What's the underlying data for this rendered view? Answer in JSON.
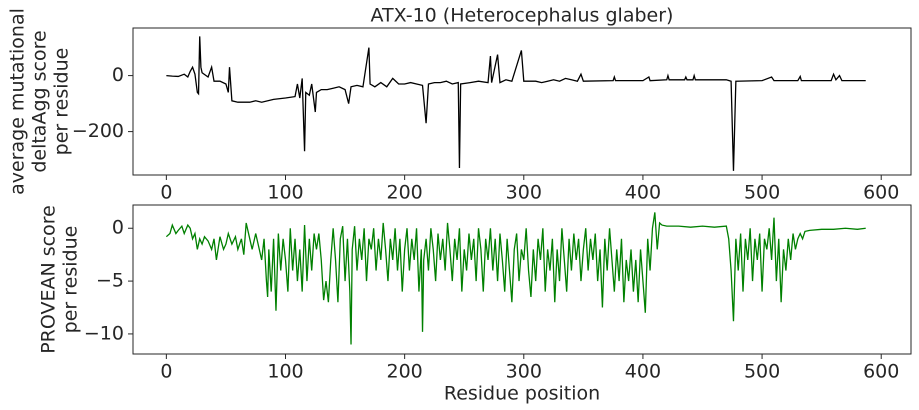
{
  "chart_data": [
    {
      "type": "line",
      "title": "ATX-10 (Heterocephalus glaber)",
      "ylabel": [
        "average mutational",
        "deltaAgg score",
        "per residue"
      ],
      "xlim": [
        -28,
        625
      ],
      "ylim": [
        -355,
        170
      ],
      "xticks": [
        0,
        100,
        200,
        300,
        400,
        500,
        600
      ],
      "yticks": [
        {
          "value": -200,
          "label": "−200"
        },
        0
      ],
      "series": [
        {
          "color": "#000000",
          "x": [
            0,
            5,
            10,
            15,
            18,
            20,
            22,
            24,
            26,
            27,
            28,
            29,
            30,
            35,
            38,
            40,
            45,
            50,
            52,
            53,
            55,
            60,
            70,
            75,
            80,
            90,
            100,
            108,
            110,
            112,
            114,
            116,
            117,
            120,
            122,
            125,
            126,
            130,
            135,
            140,
            145,
            150,
            153,
            155,
            160,
            165,
            170,
            171,
            175,
            180,
            185,
            190,
            195,
            200,
            205,
            210,
            215,
            218,
            220,
            225,
            230,
            235,
            240,
            245,
            246,
            247,
            255,
            262,
            270,
            272,
            273,
            278,
            280,
            285,
            290,
            298,
            300,
            305,
            310,
            315,
            320,
            325,
            330,
            335,
            340,
            345,
            348,
            350,
            375,
            376,
            377,
            400,
            405,
            406,
            420,
            421,
            422,
            435,
            436,
            437,
            442,
            443,
            444,
            470,
            474,
            476,
            478,
            500,
            508,
            510,
            530,
            532,
            533,
            558,
            560,
            562,
            565,
            567,
            587
          ],
          "values": [
            0,
            -2,
            -3,
            5,
            -5,
            15,
            30,
            5,
            -60,
            -65,
            140,
            30,
            10,
            -5,
            30,
            -20,
            -20,
            -30,
            -60,
            30,
            -90,
            -95,
            -95,
            -90,
            -95,
            -85,
            -80,
            -75,
            -30,
            -80,
            -10,
            -270,
            -60,
            -70,
            -30,
            -130,
            -60,
            -50,
            -50,
            -45,
            -40,
            -50,
            -100,
            -40,
            -35,
            -40,
            100,
            -30,
            -40,
            -25,
            -40,
            -10,
            -30,
            -30,
            -25,
            -30,
            -35,
            -170,
            -30,
            -25,
            -25,
            -20,
            -30,
            -25,
            -330,
            -30,
            -25,
            -20,
            -25,
            70,
            -25,
            75,
            -25,
            -15,
            -20,
            90,
            -20,
            -20,
            -20,
            -25,
            -20,
            -15,
            -20,
            -10,
            -15,
            -20,
            5,
            -20,
            -18,
            -5,
            -18,
            -18,
            -5,
            -18,
            -15,
            0,
            -15,
            -15,
            -5,
            -15,
            -15,
            0,
            -15,
            -15,
            -20,
            -340,
            -20,
            -18,
            -5,
            -18,
            -18,
            -3,
            -18,
            -18,
            5,
            -15,
            0,
            -18,
            -18
          ]
        }
      ]
    },
    {
      "type": "line",
      "xlabel": "Residue position",
      "ylabel": [
        "PROVEAN score",
        "per residue"
      ],
      "xlim": [
        -28,
        625
      ],
      "ylim": [
        -11.9,
        2.2
      ],
      "xticks": [
        0,
        100,
        200,
        300,
        400,
        500,
        600
      ],
      "yticks": [
        {
          "value": -10,
          "label": "−10"
        },
        {
          "value": -5,
          "label": "−5"
        },
        0
      ],
      "series": [
        {
          "color": "#008000",
          "x": [
            0,
            3,
            5,
            8,
            10,
            13,
            15,
            18,
            20,
            22,
            24,
            26,
            28,
            30,
            32,
            35,
            38,
            40,
            42,
            45,
            48,
            50,
            52,
            55,
            58,
            60,
            63,
            65,
            67,
            70,
            72,
            75,
            78,
            80,
            82,
            84,
            85,
            86,
            88,
            90,
            92,
            94,
            96,
            98,
            100,
            102,
            104,
            106,
            108,
            110,
            112,
            114,
            116,
            118,
            120,
            122,
            124,
            126,
            128,
            130,
            132,
            134,
            136,
            138,
            140,
            142,
            144,
            146,
            148,
            150,
            152,
            154,
            155,
            156,
            158,
            160,
            162,
            164,
            166,
            168,
            170,
            172,
            174,
            176,
            178,
            180,
            182,
            184,
            186,
            188,
            190,
            192,
            194,
            196,
            198,
            200,
            202,
            204,
            206,
            208,
            210,
            212,
            214,
            215,
            216,
            218,
            220,
            222,
            224,
            226,
            228,
            230,
            232,
            234,
            236,
            238,
            240,
            242,
            244,
            246,
            248,
            250,
            252,
            254,
            256,
            258,
            260,
            262,
            264,
            266,
            268,
            270,
            272,
            274,
            276,
            278,
            280,
            282,
            284,
            286,
            288,
            290,
            292,
            294,
            296,
            298,
            300,
            302,
            304,
            306,
            308,
            310,
            312,
            314,
            316,
            318,
            320,
            322,
            324,
            326,
            328,
            330,
            332,
            334,
            336,
            338,
            340,
            342,
            344,
            346,
            348,
            350,
            352,
            354,
            356,
            358,
            360,
            362,
            364,
            366,
            368,
            370,
            372,
            374,
            376,
            378,
            380,
            382,
            384,
            386,
            388,
            390,
            392,
            394,
            396,
            398,
            400,
            402,
            404,
            406,
            408,
            410,
            412,
            414,
            416,
            420,
            430,
            440,
            450,
            460,
            470,
            472,
            474,
            476,
            478,
            480,
            482,
            484,
            486,
            488,
            490,
            492,
            494,
            496,
            498,
            500,
            502,
            504,
            506,
            508,
            510,
            512,
            514,
            516,
            518,
            520,
            522,
            524,
            526,
            528,
            530,
            532,
            534,
            536,
            540,
            550,
            560,
            570,
            580,
            587
          ],
          "values": [
            -0.8,
            -0.5,
            0.3,
            -0.5,
            -0.2,
            0.2,
            -0.5,
            0.3,
            0,
            -1,
            -0.5,
            -2,
            -1,
            -1.5,
            -0.8,
            -1.2,
            -2,
            -1,
            -3,
            -0.8,
            -2,
            -1.5,
            -0.5,
            -1.5,
            -0.8,
            -2,
            -1,
            -2.5,
            0.5,
            -1,
            -2,
            -0.5,
            -2,
            -3,
            -1,
            -5,
            -6.5,
            -2,
            -6,
            -1,
            -7.8,
            -0.5,
            -4,
            -1,
            -3,
            -6,
            0,
            -4,
            -1,
            -5,
            -2,
            -6,
            0.3,
            -5,
            -1,
            -4,
            -0.5,
            -2,
            -0.5,
            -3,
            -6.8,
            -5,
            -7,
            -3,
            0,
            -3,
            -7,
            -1,
            0.2,
            -5,
            -1,
            -6,
            -11,
            -2,
            0.2,
            -4,
            -1,
            -3,
            0,
            -5,
            -1,
            -2,
            0,
            -4,
            -1,
            -3,
            0.5,
            -2,
            -5,
            -1,
            -3,
            0,
            -4,
            -1,
            -6,
            -2,
            0,
            -4,
            -1,
            -3,
            0,
            -6,
            -2,
            -9.8,
            -3,
            -1,
            -4,
            0,
            -2,
            -5,
            -0.5,
            -3,
            -1,
            -4,
            0.5,
            -2,
            -5,
            -1,
            -3,
            0,
            -6,
            -2,
            -4,
            -0.5,
            -3,
            -1,
            -5,
            0,
            -2,
            -6,
            -1,
            -3,
            0,
            -4,
            -1,
            -5,
            -0.5,
            -3,
            -6,
            -1,
            -4,
            -7,
            -2,
            -0.5,
            -5,
            -2,
            -3,
            0,
            -4,
            -6.5,
            -2,
            -5,
            -1,
            -3,
            0,
            -6,
            -2,
            -4,
            -1,
            -7,
            -2,
            -5,
            0,
            -3,
            -6,
            -1,
            -4,
            -0.5,
            -3,
            -1,
            -5,
            -2,
            0,
            -4,
            -1,
            -3,
            -0.5,
            -5,
            -2,
            -7.5,
            -1,
            -4,
            0,
            -3,
            -6,
            -2,
            -5,
            -1,
            -7,
            -3,
            -5,
            -2,
            -6,
            -3,
            -7,
            -2,
            -5,
            -8,
            -1,
            -4,
            0,
            1.5,
            -2,
            0.5,
            0.3,
            0.2,
            0.2,
            0.1,
            0.2,
            0.1,
            0.2,
            -1,
            -4,
            -8.8,
            -1,
            -4,
            -0.5,
            -6,
            -1,
            -3,
            0,
            -5,
            -1,
            -3,
            -0.5,
            -6,
            -1,
            -2,
            0,
            -3,
            1,
            -5,
            -1,
            -7,
            -2,
            -4,
            -1,
            -3,
            -0.5,
            -2,
            -1,
            -0.5,
            -1,
            -0.3,
            -0.2,
            -0.1,
            -0.1,
            0,
            -0.1,
            0
          ]
        }
      ]
    }
  ]
}
